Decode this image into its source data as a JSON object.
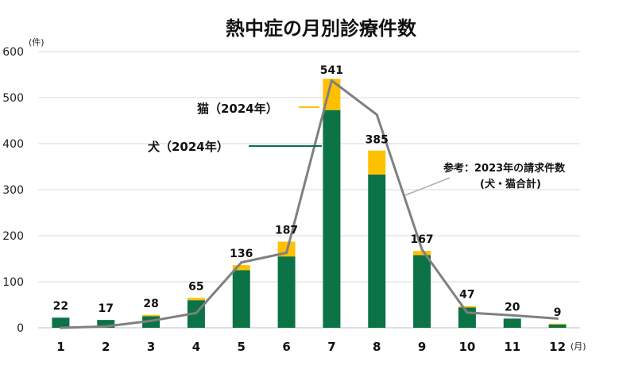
{
  "chart_data": {
    "type": "bar",
    "title": "熱中症の月別診療件数",
    "y_unit": "(件)",
    "x_unit": "(月)",
    "ylim": [
      0,
      600
    ],
    "yticks": [
      "0",
      "100",
      "200",
      "300",
      "400",
      "500",
      "600"
    ],
    "grid": true,
    "categories": [
      "1",
      "2",
      "3",
      "4",
      "5",
      "6",
      "7",
      "8",
      "9",
      "10",
      "11",
      "12"
    ],
    "totals": [
      22,
      17,
      28,
      65,
      136,
      187,
      541,
      385,
      167,
      47,
      20,
      9
    ],
    "series": [
      {
        "name": "犬（2024年）",
        "type": "bar",
        "stack": "2024",
        "color": "#0b7346",
        "values": [
          22,
          17,
          25,
          60,
          125,
          155,
          473,
          333,
          158,
          44,
          20,
          7
        ]
      },
      {
        "name": "猫（2024年）",
        "type": "bar",
        "stack": "2024",
        "color": "#ffc000",
        "values": [
          0,
          0,
          3,
          5,
          11,
          32,
          68,
          52,
          9,
          3,
          0,
          2
        ]
      },
      {
        "name": "参考：2023年の請求件数",
        "subname": "(犬・猫合計)",
        "type": "line",
        "color": "#808080",
        "values": [
          0,
          3,
          15,
          32,
          142,
          163,
          537,
          463,
          170,
          33,
          27,
          20
        ]
      }
    ]
  }
}
